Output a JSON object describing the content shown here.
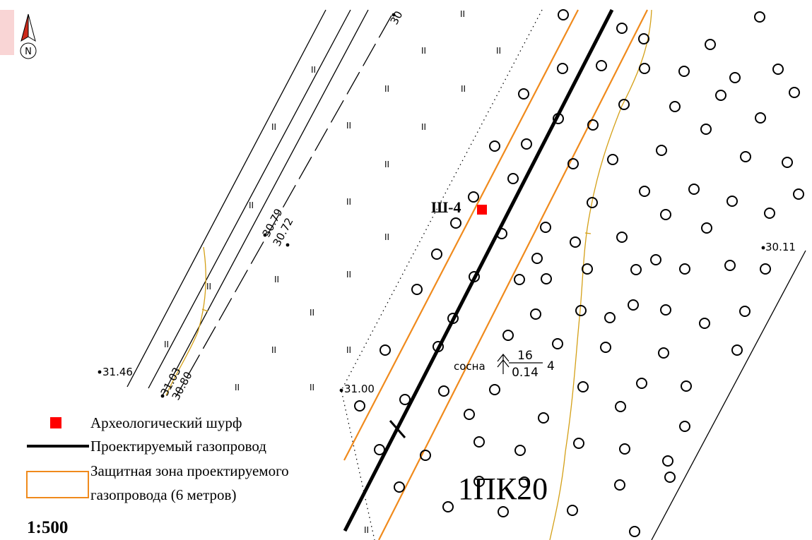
{
  "north_arrow": {
    "letter": "N"
  },
  "elevations": {
    "e1": "30",
    "e2": "30.79",
    "e3": "30.72",
    "e4": "31.46",
    "e5": "31.03",
    "e6": "30.80",
    "e7": "31.00",
    "e8": "30.11"
  },
  "pit": {
    "label": "Ш-4",
    "color": "#ff0000"
  },
  "tree_note": {
    "species": "сосна",
    "numerator": "16",
    "denominator": "0.14",
    "count": "4"
  },
  "picket": "1ПК20",
  "legend": {
    "pit": "Археологический шурф",
    "pipeline": "Проектируемый газопровод",
    "zone_line1": "Защитная зона проектируемого",
    "zone_line2": "газопровода (6 метров)"
  },
  "scale": "1:500",
  "colors": {
    "pipeline": "#000000",
    "zone": "#f08a1c",
    "contour": "#d4a017",
    "pit": "#ff0000",
    "arrow_red": "#cc2a1a"
  }
}
